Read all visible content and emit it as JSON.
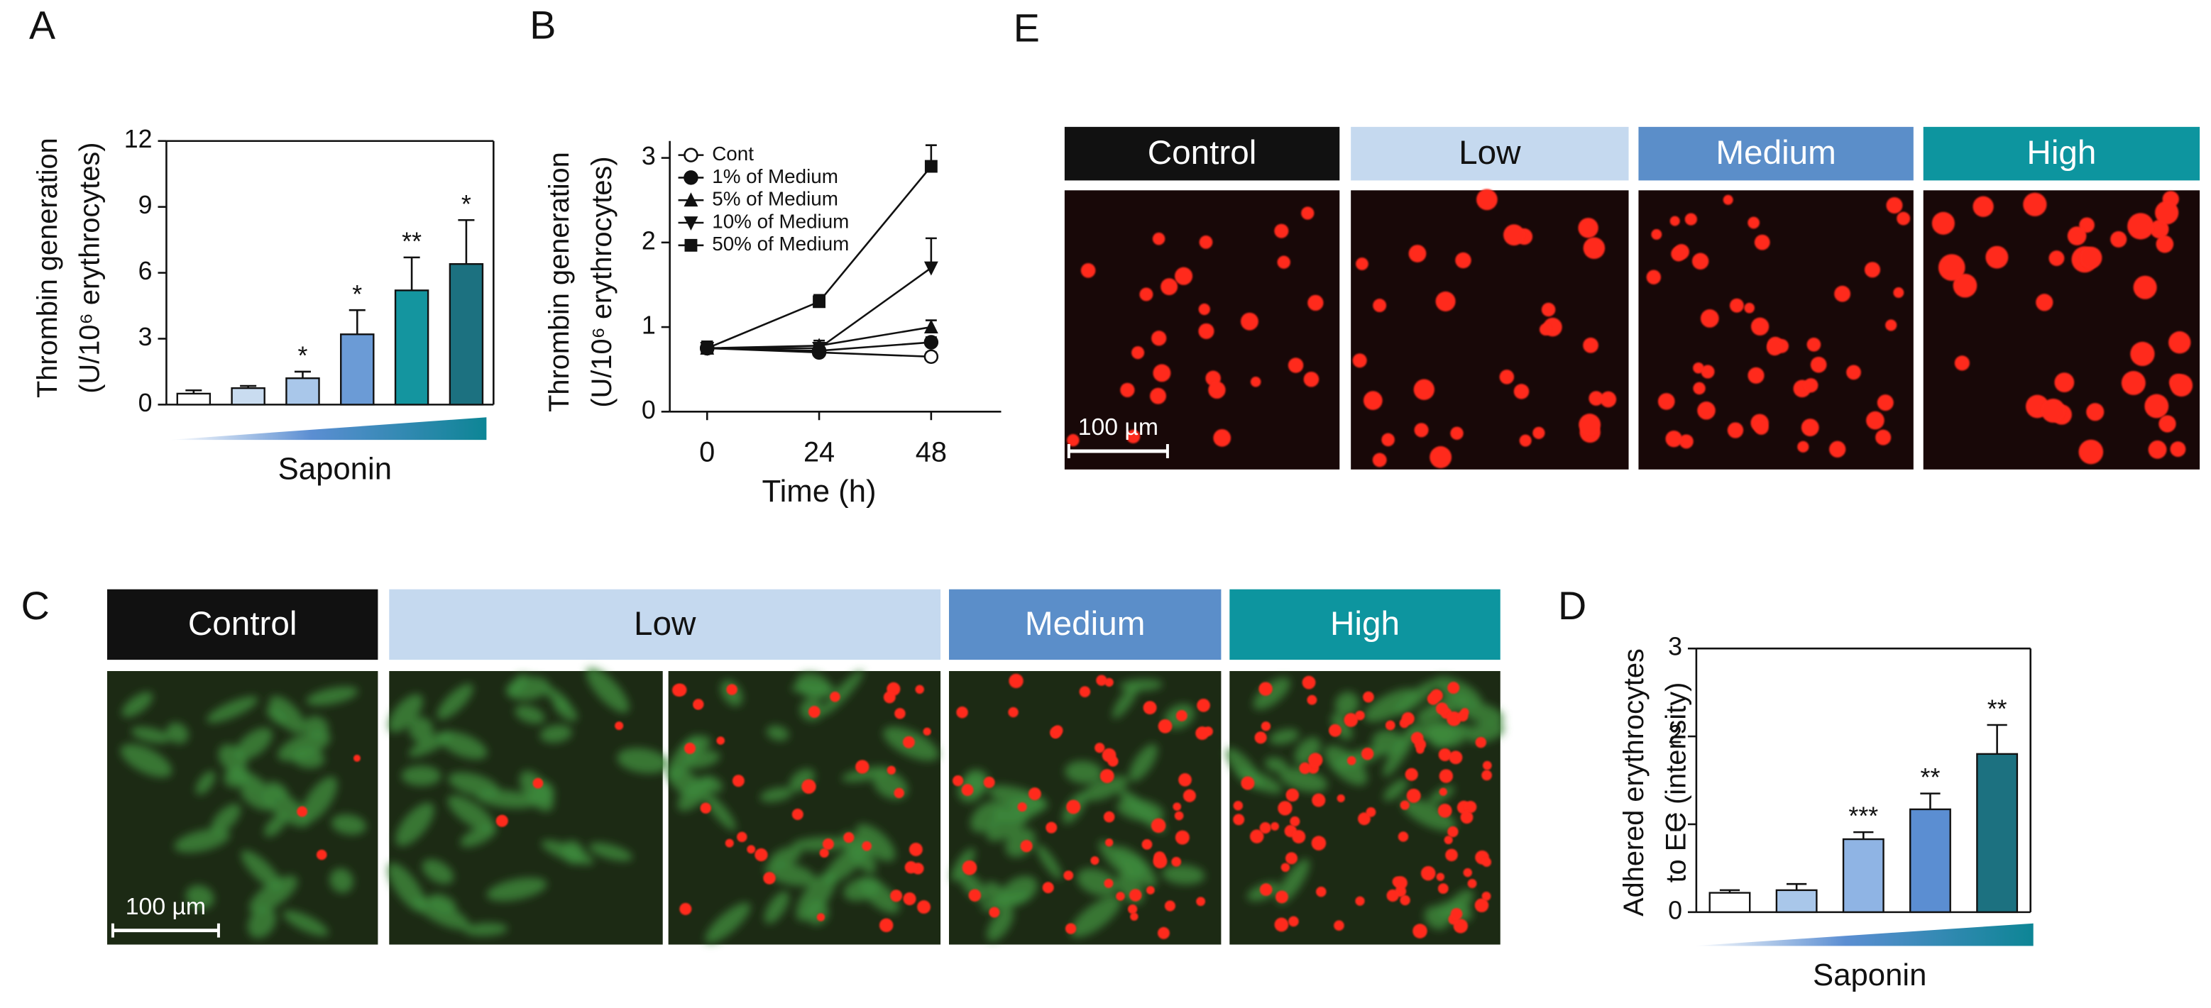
{
  "chart_data": [
    {
      "type": "bar",
      "panel_label": "A",
      "ylabel": [
        "Thrombin generation",
        "(U/10⁶ erythrocytes)"
      ],
      "xlabel": "Saponin",
      "values": [
        0.5,
        0.75,
        1.2,
        3.2,
        5.2,
        6.4
      ],
      "errors": [
        0.15,
        0.1,
        0.3,
        1.1,
        1.5,
        2.0
      ],
      "annotations": [
        null,
        null,
        "*",
        "*",
        "**",
        "*"
      ],
      "colors": [
        "#ffffff",
        "#c9dcf0",
        "#a9c7ea",
        "#6b9bd6",
        "#14959f",
        "#1c7180"
      ],
      "ylim": [
        0,
        12
      ],
      "yticks": [
        0,
        3,
        6,
        9,
        12
      ],
      "frame": true
    },
    {
      "type": "line",
      "panel_label": "B",
      "ylabel": [
        "Thrombin generation",
        "(U/10⁶ erythrocytes)"
      ],
      "xlabel": "Time (h)",
      "x": [
        0,
        24,
        48
      ],
      "xlim": [
        -8,
        63
      ],
      "xticks": [
        0,
        24,
        48
      ],
      "ylim": [
        0,
        3.2
      ],
      "yticks": [
        0,
        1,
        2,
        3
      ],
      "frame": false,
      "series": [
        {
          "name": "Cont",
          "marker": "circle-open",
          "values": [
            0.75,
            0.7,
            0.65
          ],
          "errors": [
            0.08,
            0.06,
            0.05
          ]
        },
        {
          "name": "1% of Medium",
          "marker": "circle",
          "values": [
            0.75,
            0.72,
            0.82
          ],
          "errors": [
            0.08,
            0.06,
            0.06
          ]
        },
        {
          "name": "5% of Medium",
          "marker": "triangle-up",
          "values": [
            0.75,
            0.78,
            1.0
          ],
          "errors": [
            0.08,
            0.06,
            0.08
          ]
        },
        {
          "name": "10% of Medium",
          "marker": "triangle-down",
          "values": [
            0.75,
            0.75,
            1.7
          ],
          "errors": [
            0.08,
            0.06,
            0.35
          ]
        },
        {
          "name": "50% of Medium",
          "marker": "square",
          "values": [
            0.75,
            1.3,
            2.9
          ],
          "errors": [
            0.08,
            0.08,
            0.25
          ]
        }
      ]
    },
    {
      "type": "bar",
      "panel_label": "D",
      "ylabel": [
        "Adhered erythrocytes",
        "to EC (intensity)"
      ],
      "xlabel": "Saponin",
      "values": [
        0.22,
        0.25,
        0.83,
        1.17,
        1.8
      ],
      "errors": [
        0.03,
        0.07,
        0.08,
        0.18,
        0.33
      ],
      "annotations": [
        null,
        null,
        "***",
        "**",
        "**"
      ],
      "colors": [
        "#ffffff",
        "#a9c7ea",
        "#8fb4e4",
        "#5b8ed2",
        "#1c7180"
      ],
      "ylim": [
        0,
        3
      ],
      "yticks": [
        0,
        1,
        2,
        3
      ],
      "frame": true
    }
  ],
  "images": [
    {
      "panel_label": "E",
      "columns": [
        "Control",
        "Low",
        "Medium",
        "High"
      ],
      "scale_bar": "100 µm"
    },
    {
      "panel_label": "C",
      "columns": [
        "Control",
        "Low",
        "Medium",
        "High"
      ],
      "scale_bar": "100 µm"
    }
  ]
}
